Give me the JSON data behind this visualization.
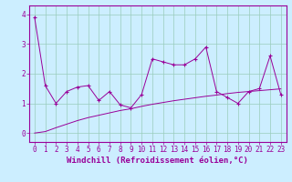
{
  "x": [
    0,
    1,
    2,
    3,
    4,
    5,
    6,
    7,
    8,
    9,
    10,
    11,
    12,
    13,
    14,
    15,
    16,
    17,
    18,
    19,
    20,
    21,
    22,
    23
  ],
  "line1": [
    3.9,
    1.6,
    1.0,
    1.4,
    1.55,
    1.6,
    1.1,
    1.4,
    0.95,
    0.85,
    1.3,
    2.5,
    2.4,
    2.3,
    2.3,
    2.5,
    2.9,
    1.4,
    1.2,
    1.0,
    1.4,
    1.5,
    2.6,
    1.3
  ],
  "trend": [
    0.0,
    0.05,
    0.18,
    0.3,
    0.42,
    0.52,
    0.6,
    0.68,
    0.76,
    0.82,
    0.9,
    0.97,
    1.03,
    1.09,
    1.14,
    1.19,
    1.24,
    1.28,
    1.33,
    1.37,
    1.4,
    1.43,
    1.46,
    1.49
  ],
  "xlim": [
    -0.5,
    23.5
  ],
  "ylim": [
    -0.3,
    4.3
  ],
  "yticks": [
    0,
    1,
    2,
    3,
    4
  ],
  "xticks": [
    0,
    1,
    2,
    3,
    4,
    5,
    6,
    7,
    8,
    9,
    10,
    11,
    12,
    13,
    14,
    15,
    16,
    17,
    18,
    19,
    20,
    21,
    22,
    23
  ],
  "xlabel": "Windchill (Refroidissement éolien,°C)",
  "line_color": "#990099",
  "bg_color": "#cceeff",
  "grid_color": "#99ccbb",
  "tick_fontsize": 5.5,
  "xlabel_fontsize": 6.5
}
